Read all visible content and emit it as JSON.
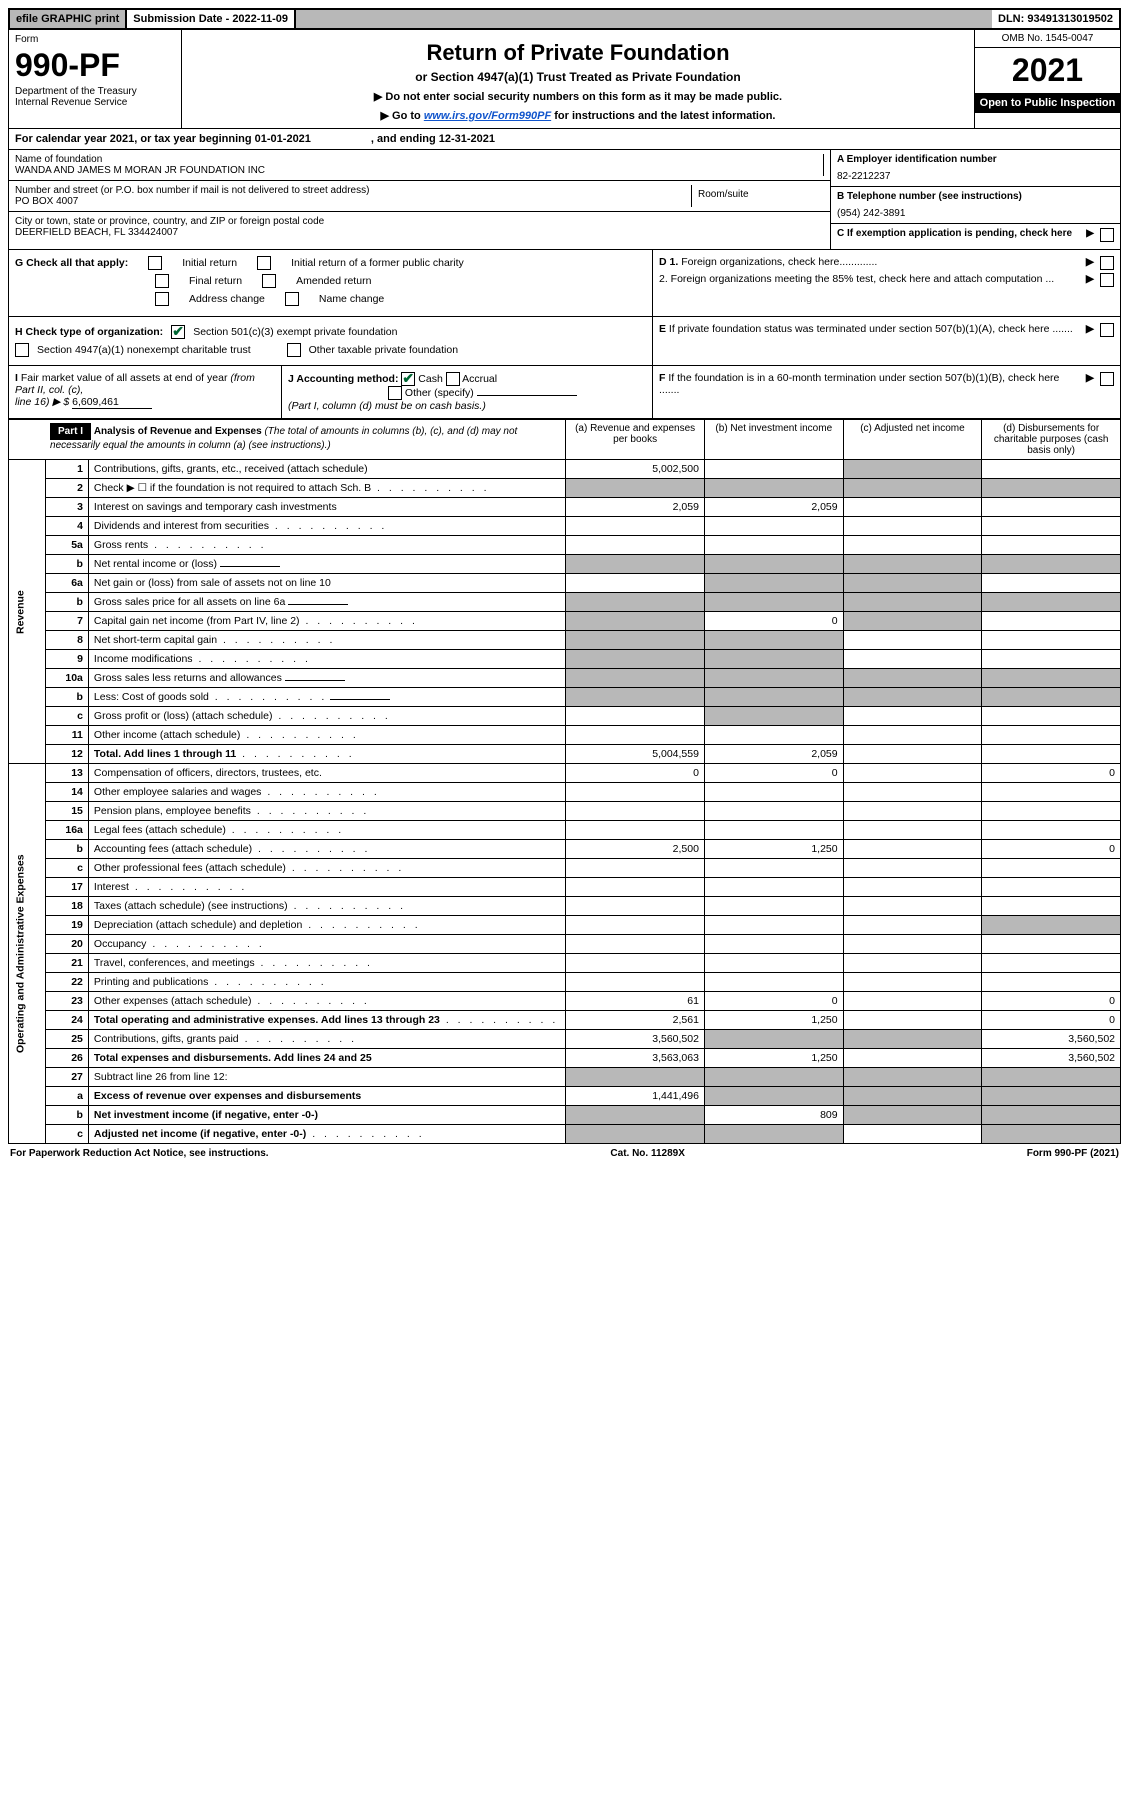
{
  "top_bar": {
    "efile": "efile GRAPHIC print",
    "subdate_label": "Submission Date - 2022-11-09",
    "dln": "DLN: 93491313019502"
  },
  "header": {
    "form_label": "Form",
    "form_number": "990-PF",
    "dept": "Department of the Treasury",
    "irs": "Internal Revenue Service",
    "title": "Return of Private Foundation",
    "subtitle": "or Section 4947(a)(1) Trust Treated as Private Foundation",
    "instr1": "▶ Do not enter social security numbers on this form as it may be made public.",
    "instr2_pre": "▶ Go to ",
    "instr2_link": "www.irs.gov/Form990PF",
    "instr2_post": " for instructions and the latest information.",
    "omb": "OMB No. 1545-0047",
    "tax_year": "2021",
    "inspection": "Open to Public Inspection"
  },
  "calendar": {
    "text": "For calendar year 2021, or tax year beginning 01-01-2021",
    "ending": ", and ending 12-31-2021"
  },
  "foundation": {
    "name_label": "Name of foundation",
    "name": "WANDA AND JAMES M MORAN JR FOUNDATION INC",
    "addr_label": "Number and street (or P.O. box number if mail is not delivered to street address)",
    "addr": "PO BOX 4007",
    "room_label": "Room/suite",
    "city_label": "City or town, state or province, country, and ZIP or foreign postal code",
    "city": "DEERFIELD BEACH, FL  334424007",
    "ein_label": "A Employer identification number",
    "ein": "82-2212237",
    "phone_label": "B Telephone number (see instructions)",
    "phone": "(954) 242-3891",
    "c_label": "C If exemption application is pending, check here",
    "d1": "D 1. Foreign organizations, check here.............",
    "d2": "2. Foreign organizations meeting the 85% test, check here and attach computation ...",
    "e_label": "E  If private foundation status was terminated under section 507(b)(1)(A), check here .......",
    "f_label": "F  If the foundation is in a 60-month termination under section 507(b)(1)(B), check here ......."
  },
  "g": {
    "label": "G Check all that apply:",
    "initial": "Initial return",
    "initial_former": "Initial return of a former public charity",
    "final": "Final return",
    "amended": "Amended return",
    "addr_change": "Address change",
    "name_change": "Name change"
  },
  "h": {
    "label": "H Check type of organization:",
    "501c3": "Section 501(c)(3) exempt private foundation",
    "4947": "Section 4947(a)(1) nonexempt charitable trust",
    "other_taxable": "Other taxable private foundation"
  },
  "i": {
    "label": "I Fair market value of all assets at end of year (from Part II, col. (c),",
    "line16": "line 16) ▶ $",
    "value": "6,609,461"
  },
  "j": {
    "label": "J Accounting method:",
    "cash": "Cash",
    "accrual": "Accrual",
    "other": "Other (specify)",
    "note": "(Part I, column (d) must be on cash basis.)"
  },
  "part1": {
    "header": "Part I",
    "title": "Analysis of Revenue and Expenses",
    "title_note": " (The total of amounts in columns (b), (c), and (d) may not necessarily equal the amounts in column (a) (see instructions).)",
    "col_a": "(a)   Revenue and expenses per books",
    "col_b": "(b)   Net investment income",
    "col_c": "(c)   Adjusted net income",
    "col_d": "(d)   Disbursements for charitable purposes (cash basis only)",
    "side_revenue": "Revenue",
    "side_expenses": "Operating and Administrative Expenses"
  },
  "rows": [
    {
      "n": "1",
      "desc": "Contributions, gifts, grants, etc., received (attach schedule)",
      "a": "5,002,500",
      "b": "",
      "c": "",
      "d": "",
      "gray": [
        "c"
      ]
    },
    {
      "n": "2",
      "desc": "Check ▶ ☐ if the foundation is not required to attach Sch. B",
      "a": "",
      "b": "",
      "c": "",
      "d": "",
      "gray": [
        "a",
        "b",
        "c",
        "d"
      ],
      "dots": true,
      "bold_not": true
    },
    {
      "n": "3",
      "desc": "Interest on savings and temporary cash investments",
      "a": "2,059",
      "b": "2,059",
      "c": "",
      "d": "",
      "gray": []
    },
    {
      "n": "4",
      "desc": "Dividends and interest from securities",
      "a": "",
      "b": "",
      "c": "",
      "d": "",
      "gray": [],
      "dots": true
    },
    {
      "n": "5a",
      "desc": "Gross rents",
      "a": "",
      "b": "",
      "c": "",
      "d": "",
      "gray": [],
      "dots": true
    },
    {
      "n": "b",
      "desc": "Net rental income or (loss)",
      "a": "",
      "b": "",
      "c": "",
      "d": "",
      "gray": [
        "a",
        "b",
        "c",
        "d"
      ],
      "inline_blank": true
    },
    {
      "n": "6a",
      "desc": "Net gain or (loss) from sale of assets not on line 10",
      "a": "",
      "b": "",
      "c": "",
      "d": "",
      "gray": [
        "b",
        "c"
      ]
    },
    {
      "n": "b",
      "desc": "Gross sales price for all assets on line 6a",
      "a": "",
      "b": "",
      "c": "",
      "d": "",
      "gray": [
        "a",
        "b",
        "c",
        "d"
      ],
      "inline_blank": true
    },
    {
      "n": "7",
      "desc": "Capital gain net income (from Part IV, line 2)",
      "a": "",
      "b": "0",
      "c": "",
      "d": "",
      "gray": [
        "a",
        "c"
      ],
      "dots": true
    },
    {
      "n": "8",
      "desc": "Net short-term capital gain",
      "a": "",
      "b": "",
      "c": "",
      "d": "",
      "gray": [
        "a",
        "b"
      ],
      "dots": true
    },
    {
      "n": "9",
      "desc": "Income modifications",
      "a": "",
      "b": "",
      "c": "",
      "d": "",
      "gray": [
        "a",
        "b"
      ],
      "dots": true
    },
    {
      "n": "10a",
      "desc": "Gross sales less returns and allowances",
      "a": "",
      "b": "",
      "c": "",
      "d": "",
      "gray": [
        "a",
        "b",
        "c",
        "d"
      ],
      "inline_blank": true
    },
    {
      "n": "b",
      "desc": "Less: Cost of goods sold",
      "a": "",
      "b": "",
      "c": "",
      "d": "",
      "gray": [
        "a",
        "b",
        "c",
        "d"
      ],
      "dots": true,
      "inline_blank": true
    },
    {
      "n": "c",
      "desc": "Gross profit or (loss) (attach schedule)",
      "a": "",
      "b": "",
      "c": "",
      "d": "",
      "gray": [
        "b"
      ],
      "dots": true
    },
    {
      "n": "11",
      "desc": "Other income (attach schedule)",
      "a": "",
      "b": "",
      "c": "",
      "d": "",
      "gray": [],
      "dots": true
    },
    {
      "n": "12",
      "desc": "Total. Add lines 1 through 11",
      "a": "5,004,559",
      "b": "2,059",
      "c": "",
      "d": "",
      "gray": [],
      "dots": true,
      "bold": true
    },
    {
      "n": "13",
      "desc": "Compensation of officers, directors, trustees, etc.",
      "a": "0",
      "b": "0",
      "c": "",
      "d": "0",
      "gray": []
    },
    {
      "n": "14",
      "desc": "Other employee salaries and wages",
      "a": "",
      "b": "",
      "c": "",
      "d": "",
      "gray": [],
      "dots": true
    },
    {
      "n": "15",
      "desc": "Pension plans, employee benefits",
      "a": "",
      "b": "",
      "c": "",
      "d": "",
      "gray": [],
      "dots": true
    },
    {
      "n": "16a",
      "desc": "Legal fees (attach schedule)",
      "a": "",
      "b": "",
      "c": "",
      "d": "",
      "gray": [],
      "dots": true
    },
    {
      "n": "b",
      "desc": "Accounting fees (attach schedule)",
      "a": "2,500",
      "b": "1,250",
      "c": "",
      "d": "0",
      "gray": [],
      "dots": true
    },
    {
      "n": "c",
      "desc": "Other professional fees (attach schedule)",
      "a": "",
      "b": "",
      "c": "",
      "d": "",
      "gray": [],
      "dots": true
    },
    {
      "n": "17",
      "desc": "Interest",
      "a": "",
      "b": "",
      "c": "",
      "d": "",
      "gray": [],
      "dots": true
    },
    {
      "n": "18",
      "desc": "Taxes (attach schedule) (see instructions)",
      "a": "",
      "b": "",
      "c": "",
      "d": "",
      "gray": [],
      "dots": true
    },
    {
      "n": "19",
      "desc": "Depreciation (attach schedule) and depletion",
      "a": "",
      "b": "",
      "c": "",
      "d": "",
      "gray": [
        "d"
      ],
      "dots": true
    },
    {
      "n": "20",
      "desc": "Occupancy",
      "a": "",
      "b": "",
      "c": "",
      "d": "",
      "gray": [],
      "dots": true
    },
    {
      "n": "21",
      "desc": "Travel, conferences, and meetings",
      "a": "",
      "b": "",
      "c": "",
      "d": "",
      "gray": [],
      "dots": true
    },
    {
      "n": "22",
      "desc": "Printing and publications",
      "a": "",
      "b": "",
      "c": "",
      "d": "",
      "gray": [],
      "dots": true
    },
    {
      "n": "23",
      "desc": "Other expenses (attach schedule)",
      "a": "61",
      "b": "0",
      "c": "",
      "d": "0",
      "gray": [],
      "dots": true
    },
    {
      "n": "24",
      "desc": "Total operating and administrative expenses. Add lines 13 through 23",
      "a": "2,561",
      "b": "1,250",
      "c": "",
      "d": "0",
      "gray": [],
      "dots": true,
      "bold": true
    },
    {
      "n": "25",
      "desc": "Contributions, gifts, grants paid",
      "a": "3,560,502",
      "b": "",
      "c": "",
      "d": "3,560,502",
      "gray": [
        "b",
        "c"
      ],
      "dots": true
    },
    {
      "n": "26",
      "desc": "Total expenses and disbursements. Add lines 24 and 25",
      "a": "3,563,063",
      "b": "1,250",
      "c": "",
      "d": "3,560,502",
      "gray": [],
      "bold": true
    },
    {
      "n": "27",
      "desc": "Subtract line 26 from line 12:",
      "a": "",
      "b": "",
      "c": "",
      "d": "",
      "gray": [
        "a",
        "b",
        "c",
        "d"
      ]
    },
    {
      "n": "a",
      "desc": "Excess of revenue over expenses and disbursements",
      "a": "1,441,496",
      "b": "",
      "c": "",
      "d": "",
      "gray": [
        "b",
        "c",
        "d"
      ],
      "bold": true
    },
    {
      "n": "b",
      "desc": "Net investment income (if negative, enter -0-)",
      "a": "",
      "b": "809",
      "c": "",
      "d": "",
      "gray": [
        "a",
        "c",
        "d"
      ],
      "bold": true
    },
    {
      "n": "c",
      "desc": "Adjusted net income (if negative, enter -0-)",
      "a": "",
      "b": "",
      "c": "",
      "d": "",
      "gray": [
        "a",
        "b",
        "d"
      ],
      "bold": true,
      "dots": true
    }
  ],
  "footer": {
    "left": "For Paperwork Reduction Act Notice, see instructions.",
    "mid": "Cat. No. 11289X",
    "right": "Form 990-PF (2021)"
  },
  "styling": {
    "gray_bg": "#b8b8b8",
    "black": "#000000",
    "link_color": "#1155cc",
    "check_green": "#006633"
  }
}
